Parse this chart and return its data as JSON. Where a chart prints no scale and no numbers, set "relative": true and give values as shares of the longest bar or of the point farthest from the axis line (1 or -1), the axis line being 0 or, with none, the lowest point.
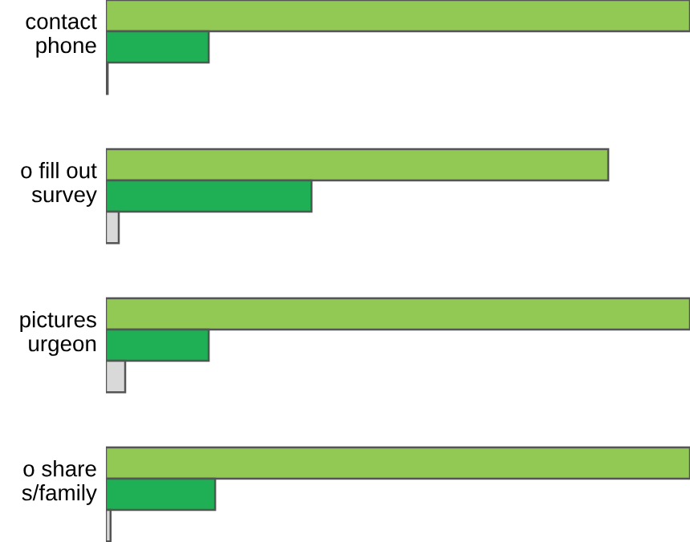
{
  "chart_data": {
    "type": "bar",
    "orientation": "horizontal",
    "relative": true,
    "categories": [
      "contact\nphone",
      "o fill out\nsurvey",
      "pictures\nurgeon",
      "o share\ns/family"
    ],
    "series": [
      {
        "color": "#92c955",
        "values": [
          1,
          0.86,
          1,
          1
        ]
      },
      {
        "color": "#1faf55",
        "values": [
          0.176,
          0.352,
          0.176,
          0.187
        ]
      },
      {
        "color": "#d9d9d9",
        "values": [
          0.003,
          0.022,
          0.033,
          0.008
        ]
      }
    ],
    "grid": false,
    "legend": false
  }
}
